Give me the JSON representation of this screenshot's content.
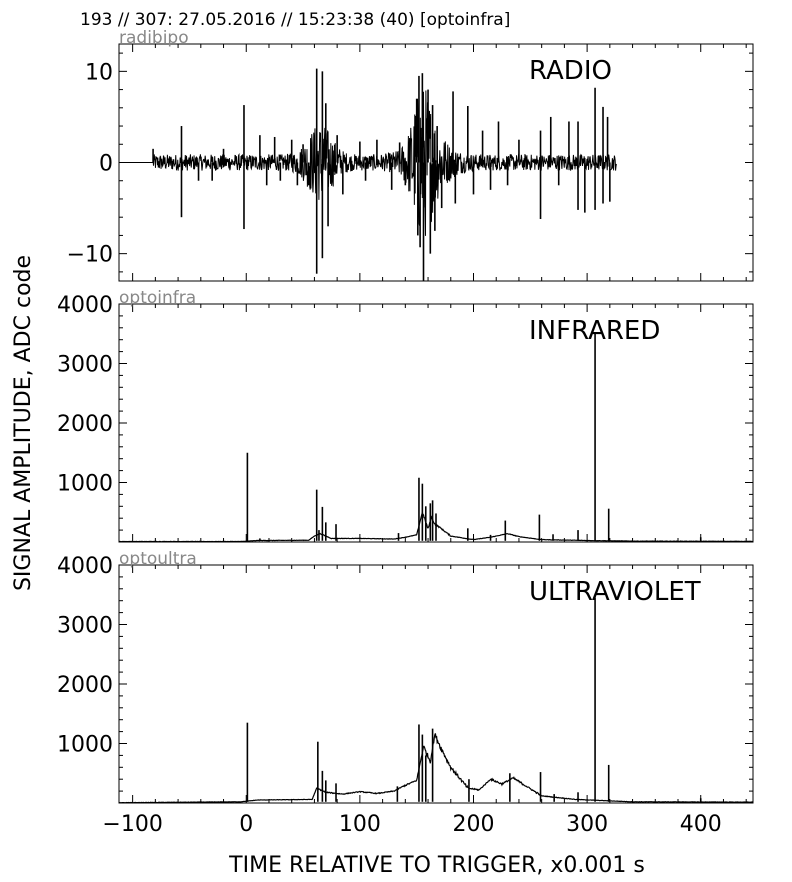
{
  "header": {
    "title": "193 // 307:   27.05.2016 // 15:23:38 (40)  [optoinfra]"
  },
  "axes": {
    "ylabel": "SIGNAL AMPLITUDE,  ADC code",
    "xlabel": "TIME RELATIVE TO TRIGGER,   x0.001 s"
  },
  "chart_data": [
    {
      "type": "line",
      "title": "RADIO",
      "channel": "radibipo",
      "xlim": [
        -112,
        446
      ],
      "ylim": [
        -13,
        13
      ],
      "yticks": [
        -10,
        0,
        10
      ],
      "color": "#000000",
      "noise_range": [
        -82,
        326
      ],
      "noise_bursts": [
        {
          "x": 65,
          "amp": 3.5,
          "w": 14
        },
        {
          "x": 155,
          "amp": 5,
          "w": 10
        },
        {
          "x": 160,
          "amp": 3,
          "w": 20
        }
      ],
      "spikes": [
        {
          "x": -82,
          "y": 1.5
        },
        {
          "x": -57,
          "y": 4
        },
        {
          "x": -57,
          "y": -6
        },
        {
          "x": -42,
          "y": -2
        },
        {
          "x": -30,
          "y": -2
        },
        {
          "x": -20,
          "y": 1.5
        },
        {
          "x": -2,
          "y": 6.3
        },
        {
          "x": -2,
          "y": -7.3
        },
        {
          "x": 12,
          "y": 3
        },
        {
          "x": 18,
          "y": -2.5
        },
        {
          "x": 25,
          "y": 2.8
        },
        {
          "x": 30,
          "y": -2
        },
        {
          "x": 40,
          "y": 2.5
        },
        {
          "x": 45,
          "y": -2.5
        },
        {
          "x": 50,
          "y": 2
        },
        {
          "x": 55,
          "y": -2.5
        },
        {
          "x": 62,
          "y": 10.3
        },
        {
          "x": 62,
          "y": -12.2
        },
        {
          "x": 67,
          "y": 10
        },
        {
          "x": 67,
          "y": -10.5
        },
        {
          "x": 70,
          "y": 6.5
        },
        {
          "x": 72,
          "y": -7
        },
        {
          "x": 80,
          "y": 3
        },
        {
          "x": 85,
          "y": -3.5
        },
        {
          "x": 100,
          "y": 2.3
        },
        {
          "x": 105,
          "y": -2
        },
        {
          "x": 115,
          "y": 2.5
        },
        {
          "x": 128,
          "y": -3
        },
        {
          "x": 135,
          "y": 2.2
        },
        {
          "x": 140,
          "y": -2.5
        },
        {
          "x": 150,
          "y": 7
        },
        {
          "x": 151,
          "y": -8
        },
        {
          "x": 152,
          "y": 9.5
        },
        {
          "x": 153,
          "y": -9.3
        },
        {
          "x": 155,
          "y": 9.8
        },
        {
          "x": 156,
          "y": -13
        },
        {
          "x": 160,
          "y": 8
        },
        {
          "x": 162,
          "y": -10
        },
        {
          "x": 164,
          "y": 6.3
        },
        {
          "x": 166,
          "y": -7.5
        },
        {
          "x": 168,
          "y": 4
        },
        {
          "x": 172,
          "y": -5
        },
        {
          "x": 182,
          "y": 7.8
        },
        {
          "x": 184,
          "y": -4.5
        },
        {
          "x": 195,
          "y": 6.2
        },
        {
          "x": 200,
          "y": -3.5
        },
        {
          "x": 208,
          "y": 3.5
        },
        {
          "x": 215,
          "y": -3
        },
        {
          "x": 222,
          "y": 4.5
        },
        {
          "x": 230,
          "y": -2.5
        },
        {
          "x": 240,
          "y": 2.5
        },
        {
          "x": 259,
          "y": 3.5
        },
        {
          "x": 259,
          "y": -6.2
        },
        {
          "x": 268,
          "y": 5
        },
        {
          "x": 275,
          "y": -2.5
        },
        {
          "x": 284,
          "y": 4.5
        },
        {
          "x": 292,
          "y": 4.5
        },
        {
          "x": 292,
          "y": -5.2
        },
        {
          "x": 298,
          "y": -5.5
        },
        {
          "x": 307,
          "y": 8.2
        },
        {
          "x": 307,
          "y": -5.2
        },
        {
          "x": 314,
          "y": 6.1
        },
        {
          "x": 314,
          "y": -4.5
        },
        {
          "x": 318,
          "y": 5
        },
        {
          "x": 320,
          "y": -4.3
        }
      ]
    },
    {
      "type": "line",
      "title": "INFRARED",
      "channel": "optoinfra",
      "xlim": [
        -112,
        446
      ],
      "ylim": [
        0,
        4000
      ],
      "yticks": [
        1000,
        2000,
        3000,
        4000
      ],
      "color": "#000000",
      "baseline": [
        [
          -112,
          8
        ],
        [
          -5,
          8
        ],
        [
          10,
          25
        ],
        [
          55,
          30
        ],
        [
          60,
          100
        ],
        [
          65,
          140
        ],
        [
          75,
          60
        ],
        [
          100,
          60
        ],
        [
          130,
          50
        ],
        [
          140,
          80
        ],
        [
          150,
          120
        ],
        [
          155,
          500
        ],
        [
          160,
          220
        ],
        [
          163,
          420
        ],
        [
          166,
          300
        ],
        [
          170,
          250
        ],
        [
          180,
          100
        ],
        [
          200,
          40
        ],
        [
          215,
          80
        ],
        [
          230,
          140
        ],
        [
          240,
          90
        ],
        [
          260,
          40
        ],
        [
          300,
          25
        ],
        [
          340,
          15
        ],
        [
          446,
          10
        ]
      ],
      "spikes": [
        {
          "x": 1,
          "y": 1500
        },
        {
          "x": 12,
          "y": 60
        },
        {
          "x": 62,
          "y": 880
        },
        {
          "x": 64,
          "y": 200
        },
        {
          "x": 67,
          "y": 590
        },
        {
          "x": 70,
          "y": 330
        },
        {
          "x": 79,
          "y": 300
        },
        {
          "x": 134,
          "y": 150
        },
        {
          "x": 152,
          "y": 1080
        },
        {
          "x": 155,
          "y": 980
        },
        {
          "x": 158,
          "y": 600
        },
        {
          "x": 162,
          "y": 650
        },
        {
          "x": 164,
          "y": 700
        },
        {
          "x": 167,
          "y": 480
        },
        {
          "x": 195,
          "y": 230
        },
        {
          "x": 215,
          "y": 120
        },
        {
          "x": 228,
          "y": 360
        },
        {
          "x": 258,
          "y": 460
        },
        {
          "x": 270,
          "y": 130
        },
        {
          "x": 292,
          "y": 200
        },
        {
          "x": 307,
          "y": 3500
        },
        {
          "x": 319,
          "y": 560
        },
        {
          "x": 400,
          "y": 80
        }
      ]
    },
    {
      "type": "line",
      "title": "ULTRAVIOLET",
      "channel": "optoultra",
      "xlim": [
        -112,
        446
      ],
      "ylim": [
        0,
        4000
      ],
      "yticks": [
        1000,
        2000,
        3000,
        4000
      ],
      "color": "#000000",
      "baseline": [
        [
          -112,
          5
        ],
        [
          -5,
          20
        ],
        [
          10,
          50
        ],
        [
          58,
          60
        ],
        [
          62,
          250
        ],
        [
          70,
          180
        ],
        [
          85,
          150
        ],
        [
          100,
          190
        ],
        [
          115,
          160
        ],
        [
          130,
          200
        ],
        [
          138,
          280
        ],
        [
          150,
          380
        ],
        [
          156,
          950
        ],
        [
          162,
          700
        ],
        [
          166,
          1150
        ],
        [
          172,
          900
        ],
        [
          180,
          600
        ],
        [
          195,
          250
        ],
        [
          205,
          220
        ],
        [
          215,
          400
        ],
        [
          225,
          320
        ],
        [
          235,
          420
        ],
        [
          245,
          300
        ],
        [
          260,
          120
        ],
        [
          290,
          60
        ],
        [
          340,
          20
        ],
        [
          446,
          15
        ]
      ],
      "spikes": [
        {
          "x": 1,
          "y": 1350
        },
        {
          "x": 63,
          "y": 1030
        },
        {
          "x": 67,
          "y": 540
        },
        {
          "x": 70,
          "y": 380
        },
        {
          "x": 79,
          "y": 330
        },
        {
          "x": 133,
          "y": 280
        },
        {
          "x": 152,
          "y": 1320
        },
        {
          "x": 155,
          "y": 1150
        },
        {
          "x": 158,
          "y": 800
        },
        {
          "x": 164,
          "y": 1250
        },
        {
          "x": 196,
          "y": 400
        },
        {
          "x": 232,
          "y": 500
        },
        {
          "x": 259,
          "y": 520
        },
        {
          "x": 271,
          "y": 150
        },
        {
          "x": 292,
          "y": 180
        },
        {
          "x": 307,
          "y": 3450
        },
        {
          "x": 319,
          "y": 640
        },
        {
          "x": 400,
          "y": 80
        }
      ]
    }
  ],
  "xaxis": {
    "ticks": [
      -100,
      0,
      100,
      200,
      300,
      400
    ],
    "tick_labels": [
      "−100",
      "0",
      "100",
      "200",
      "300",
      "400"
    ]
  }
}
